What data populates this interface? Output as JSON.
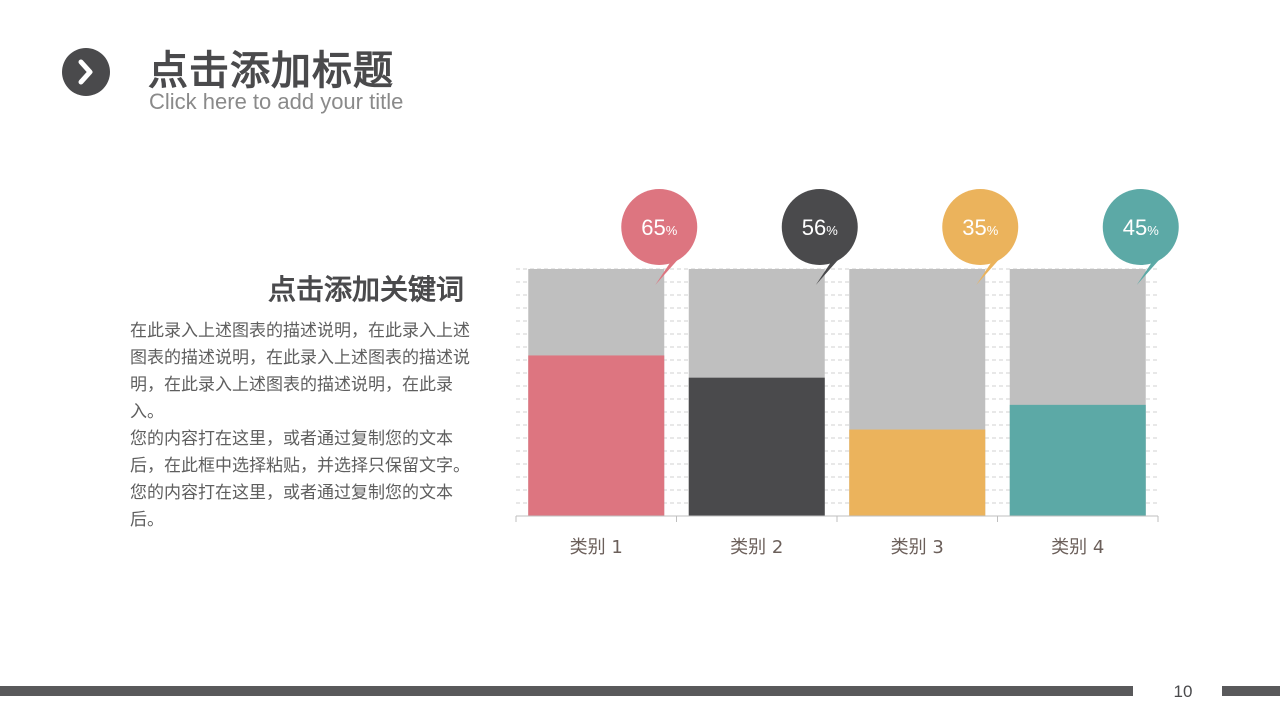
{
  "header": {
    "icon": "chevron-right-icon",
    "title": "点击添加标题",
    "subtitle": "Click here to add your title"
  },
  "content": {
    "keyword_title": "点击添加关键词",
    "paragraphs": [
      "在此录入上述图表的描述说明，在此录入上述图表的描述说明，在此录入上述图表的描述说明，在此录入上述图表的描述说明，在此录入。",
      "您的内容打在这里，或者通过复制您的文本后，在此框中选择粘贴，并选择只保留文字。您的内容打在这里，或者通过复制您的文本后。"
    ]
  },
  "chart_data": {
    "type": "bar",
    "stacked_to_100": true,
    "categories": [
      "类别 1",
      "类别 2",
      "类别 3",
      "类别 4"
    ],
    "values": [
      65,
      56,
      35,
      45
    ],
    "value_labels": [
      "65",
      "56",
      "35",
      "45"
    ],
    "unit": "%",
    "colors": [
      "#dd7580",
      "#4a4a4c",
      "#ebb35c",
      "#5ca9a6"
    ],
    "remainder_color": "#bfbfbf",
    "ylim": [
      0,
      100
    ],
    "grid": true
  },
  "footer": {
    "page_number": "10"
  }
}
